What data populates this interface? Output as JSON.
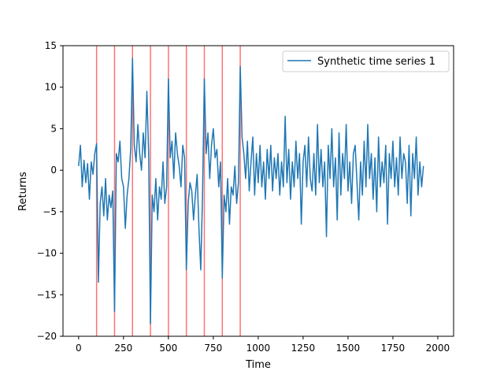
{
  "chart_data": {
    "type": "line",
    "title": "",
    "xlabel": "Time",
    "ylabel": "Returns",
    "xlim": [
      -87,
      2088
    ],
    "ylim": [
      -20,
      15
    ],
    "xticks": [
      0,
      250,
      500,
      750,
      1000,
      1250,
      1500,
      1750,
      2000
    ],
    "yticks": [
      -20,
      -15,
      -10,
      -5,
      0,
      5,
      10,
      15
    ],
    "grid": false,
    "legend": {
      "placement": "top-right",
      "entries": [
        "Synthetic time series 1"
      ]
    },
    "vlines": {
      "x": [
        100,
        200,
        300,
        400,
        500,
        600,
        700,
        800,
        900
      ],
      "color": "#ff0000",
      "alpha": 0.55
    },
    "series": [
      {
        "name": "Synthetic time series 1",
        "color": "#1f77b4",
        "x_start": 0,
        "x_step": 10,
        "values": [
          0.5,
          3.0,
          -2.0,
          1.2,
          -1.5,
          0.8,
          -3.5,
          1.0,
          -0.5,
          2.0,
          3.2,
          -13.5,
          -4.0,
          -2.0,
          -5.5,
          -1.0,
          -6.0,
          -3.0,
          -4.5,
          -2.5,
          -17.0,
          2.0,
          1.0,
          3.5,
          -1.0,
          -2.0,
          -7.0,
          -3.0,
          -1.0,
          2.5,
          13.5,
          3.0,
          1.0,
          5.5,
          2.0,
          0.0,
          4.5,
          1.5,
          9.5,
          2.0,
          -18.5,
          -3.0,
          -5.0,
          -1.0,
          -6.0,
          -2.0,
          -3.5,
          1.0,
          -4.0,
          -2.0,
          11.0,
          1.5,
          3.5,
          -1.0,
          4.5,
          2.0,
          0.5,
          -2.0,
          3.0,
          1.5,
          -12.0,
          -4.0,
          -1.5,
          -2.5,
          -6.0,
          -3.0,
          -0.5,
          -7.0,
          -12.0,
          -3.0,
          11.0,
          2.0,
          4.5,
          -1.0,
          3.0,
          5.0,
          1.5,
          2.5,
          -2.0,
          1.0,
          -13.0,
          -3.0,
          -5.0,
          -1.0,
          -6.5,
          -2.0,
          -3.0,
          0.5,
          -4.0,
          -1.5,
          12.5,
          4.0,
          2.0,
          -1.0,
          3.5,
          -2.5,
          1.0,
          4.0,
          -3.0,
          2.0,
          -1.5,
          3.0,
          -2.0,
          1.0,
          -3.5,
          2.5,
          -1.0,
          3.0,
          -2.5,
          1.5,
          -1.0,
          2.0,
          -3.0,
          1.0,
          -2.0,
          6.5,
          -1.5,
          2.5,
          -3.5,
          1.0,
          -2.0,
          3.5,
          -1.0,
          2.0,
          -6.5,
          1.0,
          3.0,
          -2.0,
          4.0,
          -1.0,
          -2.5,
          2.0,
          -3.0,
          5.5,
          -1.5,
          2.5,
          -2.0,
          1.0,
          -8.0,
          3.0,
          -1.0,
          5.0,
          -2.0,
          1.5,
          -6.0,
          4.5,
          -3.0,
          2.0,
          -1.0,
          5.5,
          -2.5,
          1.0,
          -4.0,
          2.0,
          3.0,
          -1.5,
          -6.0,
          1.0,
          -3.0,
          3.5,
          -2.0,
          5.5,
          -1.0,
          2.0,
          -3.5,
          1.5,
          -5.0,
          4.0,
          -2.0,
          1.0,
          -1.5,
          3.0,
          -6.5,
          2.0,
          -1.0,
          3.5,
          -2.0,
          1.5,
          -3.0,
          4.0,
          -1.0,
          2.0,
          1.0,
          -4.0,
          3.0,
          -5.5,
          2.0,
          -1.0,
          4.0,
          -3.0,
          1.0,
          -2.0,
          0.5
        ]
      }
    ]
  }
}
